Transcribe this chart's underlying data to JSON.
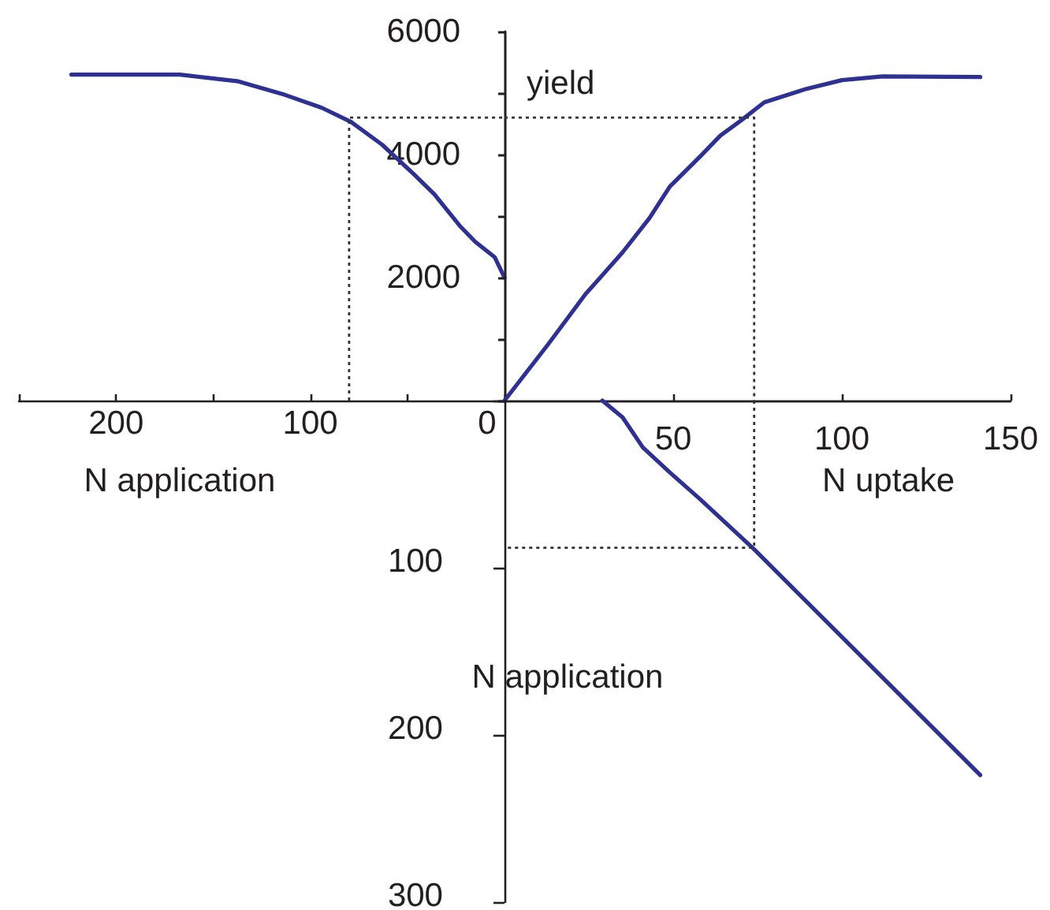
{
  "chart_data": [
    {
      "type": "line",
      "xlabel": "N application",
      "xlim": [
        250,
        0
      ],
      "ylim": [
        0,
        6000
      ],
      "xticks": [
        0,
        {
          "value": 50,
          "label": null
        },
        100,
        {
          "value": 150,
          "label": null
        },
        200,
        {
          "value": 250,
          "label": null
        }
      ],
      "yticks": [
        {
          "value": 0,
          "label": null
        },
        {
          "value": 1000,
          "label": null
        },
        2000,
        {
          "value": 3000,
          "label": null
        },
        4000,
        {
          "value": 5000,
          "label": null
        },
        6000
      ],
      "marker": "none",
      "series": [
        {
          "color": "#2e3192",
          "line_style": "solid",
          "x": [
            223,
            167,
            137,
            113,
            94,
            79,
            63,
            47,
            36,
            23,
            15,
            5,
            0
          ],
          "values": [
            5300,
            5300,
            5190,
            4970,
            4760,
            4530,
            4160,
            3690,
            3350,
            2840,
            2580,
            2330,
            2000
          ]
        },
        {
          "color": "#333333",
          "line_style": "dotted",
          "x": [
            80,
            80,
            0
          ],
          "values": [
            0,
            4600,
            4600
          ]
        }
      ]
    },
    {
      "type": "line",
      "xlabel": "N uptake",
      "ylabel": "yield",
      "xlim": [
        0,
        150
      ],
      "ylim": [
        0,
        6000
      ],
      "xticks": [
        {
          "value": 0,
          "label": null
        },
        50,
        100,
        150
      ],
      "yticks": [
        {
          "value": 0,
          "label": null
        },
        {
          "value": 1000,
          "label": null
        },
        2000,
        {
          "value": 3000,
          "label": null
        },
        4000,
        {
          "value": 5000,
          "label": null
        },
        6000
      ],
      "tick_labels": "x",
      "marker": "none",
      "series": [
        {
          "color": "#2e3192",
          "line_style": "solid",
          "x": [
            0,
            13,
            24,
            35,
            43,
            49,
            58,
            64,
            70,
            77,
            89,
            100,
            112,
            141
          ],
          "values": [
            0,
            920,
            1730,
            2410,
            2970,
            3480,
            3970,
            4310,
            4550,
            4850,
            5060,
            5210,
            5270,
            5260
          ]
        },
        {
          "color": "#333333",
          "line_style": "dotted",
          "x": [
            0,
            74,
            74
          ],
          "values": [
            4600,
            4600,
            0
          ]
        }
      ]
    },
    {
      "type": "line",
      "ylabel": "N application",
      "xlim": [
        0,
        150
      ],
      "ylim": [
        300,
        0
      ],
      "yticks": [
        {
          "value": 0,
          "label": null
        },
        100,
        200,
        300
      ],
      "tick_labels": "y",
      "marker": "none",
      "series": [
        {
          "color": "#2e3192",
          "line_style": "solid",
          "x": [
            29,
            35,
            41,
            49,
            58,
            74,
            141
          ],
          "values": [
            0,
            10,
            28,
            43,
            59,
            89,
            224
          ]
        },
        {
          "color": "#333333",
          "line_style": "dotted",
          "x": [
            74,
            74,
            0
          ],
          "values": [
            0,
            88,
            88
          ]
        }
      ]
    }
  ]
}
